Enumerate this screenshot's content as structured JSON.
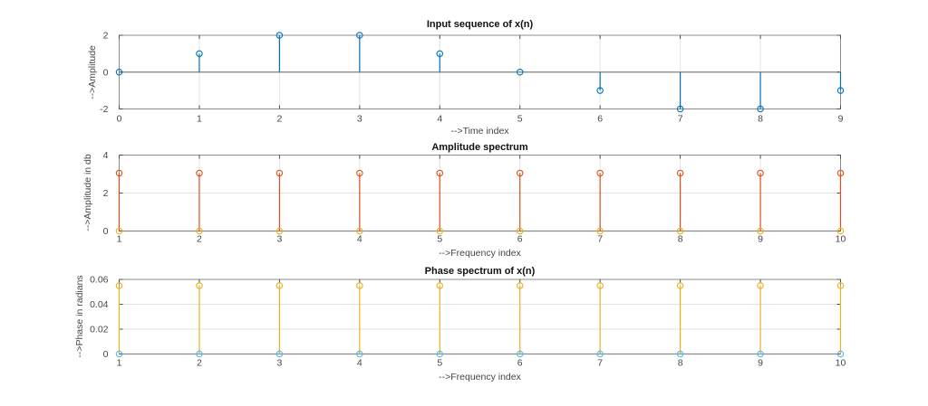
{
  "window": {
    "background": "#ffffff"
  },
  "palette": {
    "matlab_blue": "#0072BD",
    "matlab_orange": "#D95319",
    "matlab_yellow": "#EDB120",
    "matlab_cyan": "#4DBEEE",
    "axes_border": "#8c8c8c",
    "grid": "#e2e2e2",
    "baseline": "#7f7f7f",
    "tick": "#4d4d4d",
    "tick_text": "#464646"
  },
  "chart_data": [
    {
      "type": "stem",
      "title": "Input sequence of x(n)",
      "xlabel": "-->Time index",
      "ylabel": "-->Amplitude",
      "x": [
        0,
        1,
        2,
        3,
        4,
        5,
        6,
        7,
        8,
        9
      ],
      "xlim": [
        0,
        9
      ],
      "ylim": [
        -2,
        2
      ],
      "xticks": [
        0,
        1,
        2,
        3,
        4,
        5,
        6,
        7,
        8,
        9
      ],
      "xtick_labels": [
        "0",
        "1",
        "2",
        "3",
        "4",
        "5",
        "6",
        "7",
        "8",
        "9"
      ],
      "yticks": [
        -2,
        0,
        2
      ],
      "ytick_labels": [
        "-2",
        "0",
        "2"
      ],
      "grid": true,
      "legend": null,
      "series": [
        {
          "name": "x(n)",
          "color": "#0072BD",
          "marker": "open-circle",
          "values": [
            0,
            1,
            2,
            2,
            1,
            0,
            -1,
            -2,
            -2,
            -1
          ]
        }
      ]
    },
    {
      "type": "stem",
      "title": "Amplitude spectrum",
      "xlabel": "-->Frequency index",
      "ylabel": "-->Amplitude in db",
      "x": [
        1,
        2,
        3,
        4,
        5,
        6,
        7,
        8,
        9,
        10
      ],
      "xlim": [
        1,
        10
      ],
      "ylim": [
        0,
        4
      ],
      "xticks": [
        1,
        2,
        3,
        4,
        5,
        6,
        7,
        8,
        9,
        10
      ],
      "xtick_labels": [
        "1",
        "2",
        "3",
        "4",
        "5",
        "6",
        "7",
        "8",
        "9",
        "10"
      ],
      "yticks": [
        0,
        2,
        4
      ],
      "ytick_labels": [
        "0",
        "2",
        "4"
      ],
      "grid": true,
      "legend": null,
      "series": [
        {
          "name": "amplitude",
          "color": "#D95319",
          "marker": "open-circle",
          "values": [
            3.05,
            3.05,
            3.05,
            3.05,
            3.05,
            3.05,
            3.05,
            3.05,
            3.05,
            3.05
          ]
        },
        {
          "name": "zero-markers",
          "color": "#EDB120",
          "marker": "open-circle",
          "values": [
            0,
            0,
            0,
            0,
            0,
            0,
            0,
            0,
            0,
            0
          ]
        }
      ]
    },
    {
      "type": "stem",
      "title": "Phase spectrum of x(n)",
      "xlabel": "-->Frequency index",
      "ylabel": "-->Phase in radians",
      "x": [
        1,
        2,
        3,
        4,
        5,
        6,
        7,
        8,
        9,
        10
      ],
      "xlim": [
        1,
        10
      ],
      "ylim": [
        0,
        0.06
      ],
      "xticks": [
        1,
        2,
        3,
        4,
        5,
        6,
        7,
        8,
        9,
        10
      ],
      "xtick_labels": [
        "1",
        "2",
        "3",
        "4",
        "5",
        "6",
        "7",
        "8",
        "9",
        "10"
      ],
      "yticks": [
        0,
        0.02,
        0.04,
        0.06
      ],
      "ytick_labels": [
        "0",
        "0.02",
        "0.04",
        "0.06"
      ],
      "grid": true,
      "legend": null,
      "series": [
        {
          "name": "phase",
          "color": "#EDB120",
          "marker": "open-circle",
          "values": [
            0.055,
            0.055,
            0.055,
            0.055,
            0.055,
            0.055,
            0.055,
            0.055,
            0.055,
            0.055
          ]
        },
        {
          "name": "zero-markers",
          "color": "#4DBEEE",
          "marker": "open-circle",
          "values": [
            0,
            0,
            0,
            0,
            0,
            0,
            0,
            0,
            0,
            0
          ]
        }
      ]
    }
  ]
}
